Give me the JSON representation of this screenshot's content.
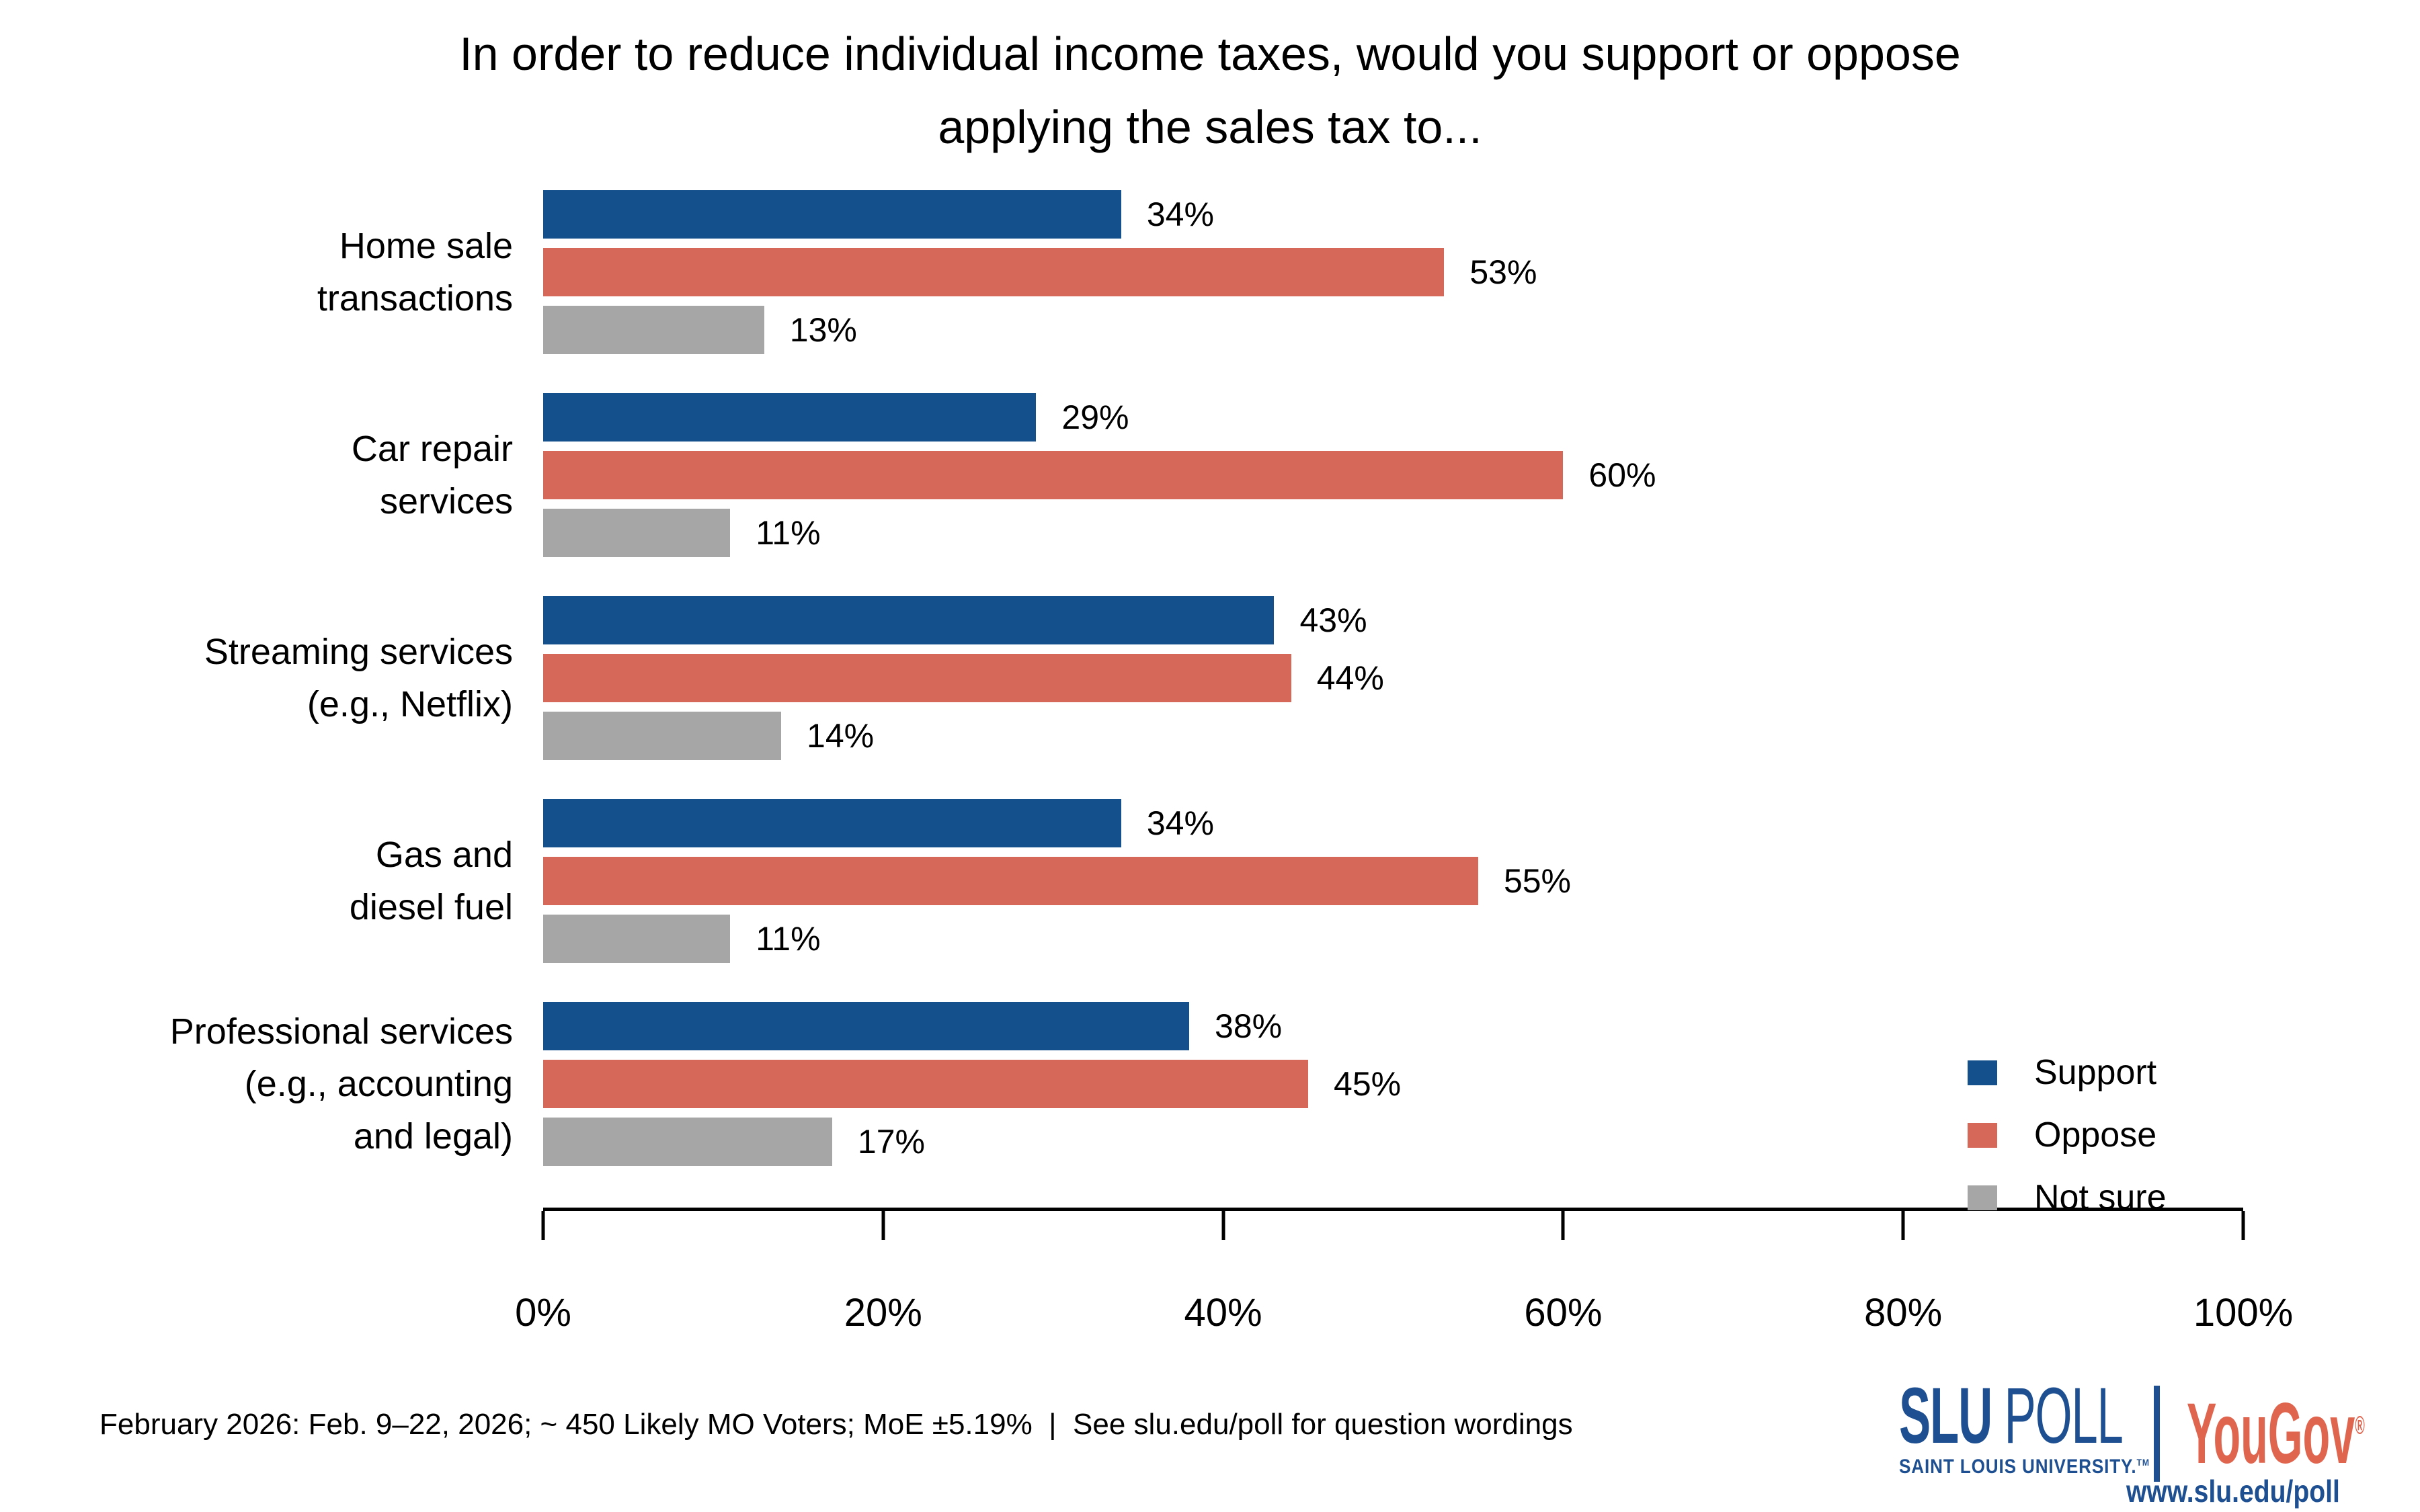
{
  "title": {
    "line1": "In order to reduce individual income taxes, would you support or oppose",
    "line2": "applying the sales tax to..."
  },
  "chart_data": {
    "type": "bar",
    "orientation": "horizontal",
    "unit": "%",
    "title": "In order to reduce individual income taxes, would you support or oppose applying the sales tax to...",
    "categories": [
      "Home sale\ntransactions",
      "Car repair\nservices",
      "Streaming services\n(e.g., Netflix)",
      "Gas and\ndiesel fuel",
      "Professional services\n(e.g., accounting\nand legal)"
    ],
    "series": [
      {
        "name": "Support",
        "color": "#14508C",
        "values": [
          34,
          29,
          43,
          34,
          38
        ]
      },
      {
        "name": "Oppose",
        "color": "#D6685A",
        "values": [
          53,
          60,
          44,
          55,
          45
        ]
      },
      {
        "name": "Not sure",
        "color": "#A6A6A6",
        "values": [
          13,
          11,
          14,
          11,
          17
        ]
      }
    ],
    "xlim": [
      0,
      100
    ],
    "x_ticks": [
      "0%",
      "20%",
      "40%",
      "60%",
      "80%",
      "100%"
    ],
    "grid": false,
    "legend_position": "bottom-right",
    "value_labels": "outside-end"
  },
  "footer": {
    "note": "February 2026: Feb. 9–22, 2026; ~ 450 Likely MO Voters; MoE ±5.19%  |  See slu.edu/poll for question wordings"
  },
  "branding": {
    "slu_poll_bold": "SLU",
    "slu_poll_rest": " POLL",
    "slu_university": "SAINT LOUIS UNIVERSITY.",
    "slu_tm": "TM",
    "yougov": "YouGov",
    "yougov_reg": "®",
    "url": "www.slu.edu/poll",
    "slu_blue": "#1D4F91",
    "yougov_red": "#E0654F"
  }
}
